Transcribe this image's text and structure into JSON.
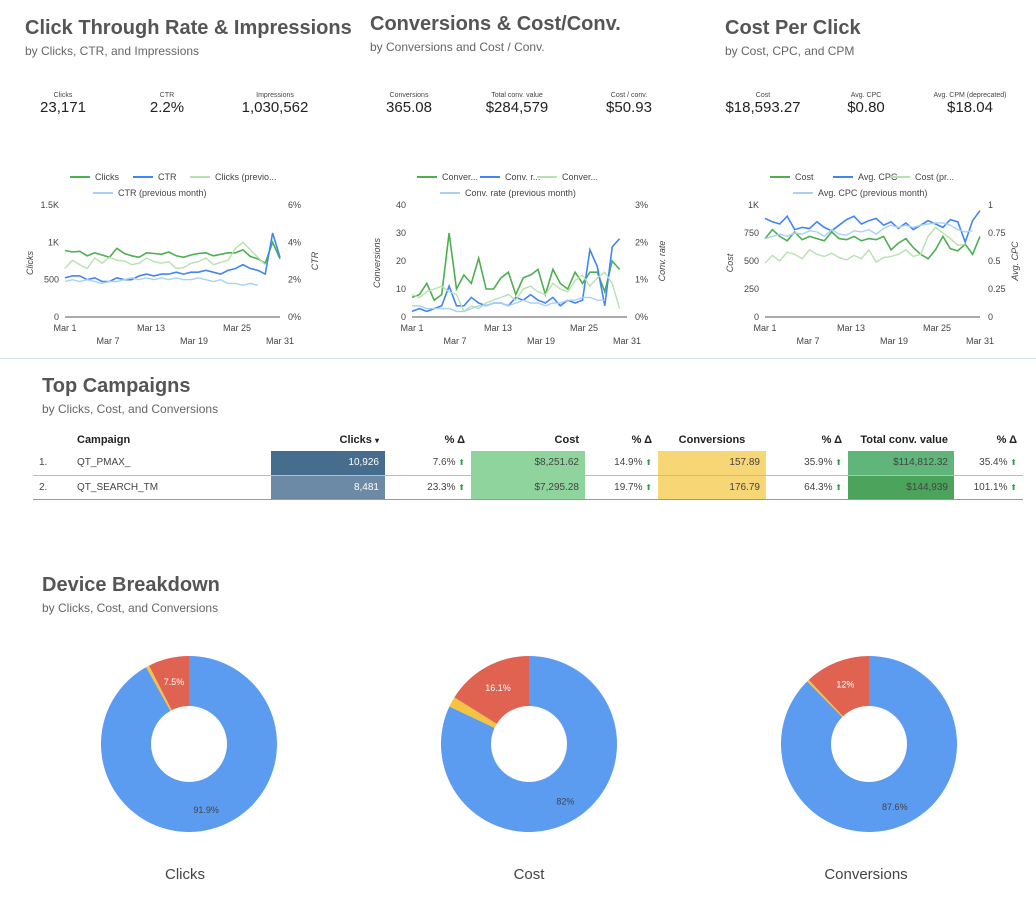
{
  "colors": {
    "green": "#4caf50",
    "blue": "#4285f4",
    "light_green": "#b7e1b1",
    "light_blue": "#a8d1f5",
    "donut_blue": "#5b9bf0",
    "donut_red": "#e06352",
    "donut_yellow": "#f5c243",
    "clicks_row1": "#4a6f8f",
    "clicks_row2": "#6c8aa6",
    "cost_cell": "#8fd49c",
    "conv_cell": "#f6d675",
    "value_row1": "#5fb57a",
    "value_row2": "#4ca35c"
  },
  "ctr_section": {
    "title": "Click Through Rate & Impressions",
    "subtitle": "by Clicks, CTR, and Impressions",
    "kpis": [
      {
        "label": "Clicks",
        "value": "23,171"
      },
      {
        "label": "CTR",
        "value": "2.2%"
      },
      {
        "label": "Impressions",
        "value": "1,030,562"
      }
    ]
  },
  "conv_section": {
    "title": "Conversions & Cost/Conv.",
    "subtitle": "by Conversions  and Cost / Conv.",
    "kpis": [
      {
        "label": "Conversions",
        "value": "365.08"
      },
      {
        "label": "Total conv. value",
        "value": "$284,579"
      },
      {
        "label": "Cost / conv.",
        "value": "$50.93"
      }
    ]
  },
  "cpc_section": {
    "title": "Cost Per Click",
    "subtitle": "by Cost, CPC, and CPM",
    "kpis": [
      {
        "label": "Cost",
        "value": "$18,593.27"
      },
      {
        "label": "Avg. CPC",
        "value": "$0.80"
      },
      {
        "label": "Avg. CPM (deprecated)",
        "value": "$18.04"
      }
    ]
  },
  "chart_data": [
    {
      "type": "line",
      "id": "ctr",
      "legend": [
        "Clicks",
        "CTR",
        "Clicks (previo...",
        "CTR (previous month)"
      ],
      "x_tick_labels": [
        "Mar 1",
        "Mar 7",
        "Mar 13",
        "Mar 19",
        "Mar 25",
        "Mar 31"
      ],
      "left_axis": {
        "label": "Clicks",
        "ticks": [
          "0",
          "500",
          "1K",
          "1.5K"
        ],
        "range": [
          0,
          1500
        ]
      },
      "right_axis": {
        "label": "CTR",
        "ticks": [
          "0%",
          "2%",
          "4%",
          "6%"
        ],
        "range": [
          0,
          6
        ]
      },
      "series": [
        {
          "name": "Clicks",
          "axis": "left",
          "values": [
            890,
            870,
            880,
            820,
            860,
            830,
            800,
            920,
            850,
            820,
            800,
            860,
            850,
            840,
            870,
            820,
            800,
            830,
            850,
            860,
            820,
            840,
            860,
            860,
            900,
            810,
            780,
            720,
            1000,
            780
          ]
        },
        {
          "name": "CTR",
          "axis": "right",
          "values": [
            2.1,
            2.2,
            2.2,
            2.0,
            2.1,
            1.9,
            1.9,
            2.1,
            2.0,
            2.0,
            2.2,
            2.3,
            2.2,
            2.3,
            2.3,
            2.4,
            2.3,
            2.4,
            2.4,
            2.5,
            2.4,
            2.3,
            2.5,
            2.6,
            2.8,
            2.6,
            2.5,
            2.3,
            4.5,
            3.2
          ]
        },
        {
          "name": "Clicks (previous month)",
          "axis": "left",
          "values": [
            650,
            760,
            700,
            650,
            790,
            720,
            800,
            760,
            750,
            700,
            720,
            790,
            740,
            720,
            740,
            650,
            660,
            720,
            740,
            790,
            700,
            730,
            760,
            920,
            1000,
            900,
            800,
            700
          ]
        },
        {
          "name": "CTR (previous month)",
          "axis": "right",
          "values": [
            1.9,
            2.0,
            1.9,
            2.0,
            1.9,
            1.8,
            1.9,
            1.9,
            2.0,
            2.1,
            2.0,
            2.1,
            2.0,
            2.1,
            2.0,
            2.1,
            2.0,
            2.0,
            2.1,
            2.0,
            1.9,
            2.0,
            1.8,
            1.8,
            1.7,
            1.8,
            1.7
          ]
        }
      ]
    },
    {
      "type": "line",
      "id": "conv",
      "legend": [
        "Conver...",
        "Conv. r...",
        "Conver...",
        "Conv. rate (previous month)"
      ],
      "x_tick_labels": [
        "Mar 1",
        "Mar 7",
        "Mar 13",
        "Mar 19",
        "Mar 25",
        "Mar 31"
      ],
      "left_axis": {
        "label": "Conversions",
        "ticks": [
          "0",
          "10",
          "20",
          "30",
          "40"
        ],
        "range": [
          0,
          40
        ]
      },
      "right_axis": {
        "label": "Conv. rate",
        "ticks": [
          "0%",
          "1%",
          "2%",
          "3%"
        ],
        "range": [
          0,
          3
        ]
      },
      "series": [
        {
          "name": "Conversions",
          "axis": "left",
          "values": [
            7,
            8,
            12,
            6,
            8,
            30,
            10,
            15,
            12,
            21,
            10,
            10,
            14,
            16,
            8,
            14,
            15,
            17,
            8,
            17,
            12,
            10,
            16,
            12,
            16,
            16,
            9,
            20,
            17
          ]
        },
        {
          "name": "Conv. rate",
          "axis": "left",
          "values": [
            2,
            3,
            2,
            3,
            4,
            11,
            4,
            4,
            7,
            5,
            4,
            5,
            5,
            4,
            7,
            6,
            8,
            6,
            5,
            7,
            4,
            6,
            5,
            6,
            24,
            18,
            4,
            25,
            28
          ]
        },
        {
          "name": "Conversions (previous month)",
          "axis": "left",
          "values": [
            8,
            7,
            9,
            10,
            11,
            9,
            8,
            2,
            4,
            3,
            5,
            6,
            7,
            8,
            6,
            10,
            11,
            9,
            8,
            12,
            10,
            9,
            13,
            15,
            11,
            14,
            16,
            12,
            3
          ]
        },
        {
          "name": "Conv. rate (previous month)",
          "axis": "left",
          "values": [
            4,
            4,
            3,
            3,
            3,
            3,
            2,
            2,
            3,
            4,
            4,
            5,
            5,
            4,
            5,
            6,
            5,
            5,
            4,
            5,
            5,
            6,
            6,
            7,
            7,
            6,
            6
          ]
        }
      ]
    },
    {
      "type": "line",
      "id": "cpc",
      "legend": [
        "Cost",
        "Avg. CPC",
        "Cost (pr...",
        "Avg. CPC (previous month)"
      ],
      "x_tick_labels": [
        "Mar 1",
        "Mar 7",
        "Mar 13",
        "Mar 19",
        "Mar 25",
        "Mar 31"
      ],
      "left_axis": {
        "label": "Cost",
        "ticks": [
          "0",
          "250",
          "500",
          "750",
          "1K"
        ],
        "range": [
          0,
          1000
        ]
      },
      "right_axis": {
        "label": "Avg. CPC",
        "ticks": [
          "0",
          "0.25",
          "0.5",
          "0.75",
          "1"
        ],
        "range": [
          0,
          1
        ]
      },
      "series": [
        {
          "name": "Cost",
          "axis": "left",
          "values": [
            700,
            780,
            720,
            680,
            760,
            690,
            720,
            700,
            680,
            760,
            700,
            690,
            720,
            680,
            700,
            690,
            720,
            600,
            660,
            700,
            620,
            560,
            520,
            600,
            720,
            610,
            590,
            650,
            560,
            720
          ]
        },
        {
          "name": "Avg. CPC",
          "axis": "right",
          "values": [
            0.88,
            0.85,
            0.83,
            0.9,
            0.78,
            0.8,
            0.79,
            0.85,
            0.8,
            0.77,
            0.82,
            0.87,
            0.9,
            0.83,
            0.86,
            0.88,
            0.82,
            0.85,
            0.79,
            0.84,
            0.78,
            0.82,
            0.86,
            0.83,
            0.8,
            0.87,
            0.85,
            0.67,
            0.86,
            0.95
          ]
        },
        {
          "name": "Cost (previous month)",
          "axis": "left",
          "values": [
            480,
            550,
            500,
            580,
            560,
            520,
            600,
            560,
            540,
            570,
            530,
            510,
            550,
            520,
            600,
            490,
            530,
            540,
            560,
            600,
            540,
            560,
            720,
            800,
            750,
            700,
            640,
            650
          ]
        },
        {
          "name": "Avg. CPC (previous month)",
          "axis": "right",
          "values": [
            0.7,
            0.72,
            0.74,
            0.72,
            0.75,
            0.74,
            0.77,
            0.76,
            0.72,
            0.78,
            0.74,
            0.73,
            0.77,
            0.76,
            0.78,
            0.74,
            0.79,
            0.82,
            0.8,
            0.82,
            0.8,
            0.82,
            0.83,
            0.84,
            0.84,
            0.82,
            0.78,
            0.76,
            0.77
          ]
        }
      ]
    },
    {
      "type": "pie",
      "id": "donut-clicks",
      "label": "Clicks",
      "slices": [
        {
          "name": "slice-1",
          "value": 91.9,
          "color_key": "donut_blue",
          "text": "91.9%"
        },
        {
          "name": "slice-2",
          "value": 0.6,
          "color_key": "donut_yellow",
          "text": ""
        },
        {
          "name": "slice-3",
          "value": 7.5,
          "color_key": "donut_red",
          "text": "7.5%"
        }
      ]
    },
    {
      "type": "pie",
      "id": "donut-cost",
      "label": "Cost",
      "slices": [
        {
          "name": "slice-1",
          "value": 82,
          "color_key": "donut_blue",
          "text": "82%"
        },
        {
          "name": "slice-2",
          "value": 1.9,
          "color_key": "donut_yellow",
          "text": ""
        },
        {
          "name": "slice-3",
          "value": 16.1,
          "color_key": "donut_red",
          "text": "16.1%"
        }
      ]
    },
    {
      "type": "pie",
      "id": "donut-conversions",
      "label": "Conversions",
      "slices": [
        {
          "name": "slice-1",
          "value": 87.6,
          "color_key": "donut_blue",
          "text": "87.6%"
        },
        {
          "name": "slice-2",
          "value": 0.4,
          "color_key": "donut_yellow",
          "text": ""
        },
        {
          "name": "slice-3",
          "value": 12,
          "color_key": "donut_red",
          "text": "12%"
        }
      ]
    }
  ],
  "campaigns": {
    "title": "Top Campaigns",
    "subtitle": "by Clicks, Cost, and Conversions",
    "headers": {
      "campaign": "Campaign",
      "clicks": "Clicks",
      "sort_indicator": "▾",
      "delta": "% Δ",
      "cost": "Cost",
      "conversions": "Conversions",
      "value": "Total conv. value"
    },
    "rows": [
      {
        "index": "1.",
        "campaign": "QT_PMAX_",
        "clicks": "10,926",
        "clicks_delta": "7.6%",
        "cost": "$8,251.62",
        "cost_delta": "14.9%",
        "conversions": "157.89",
        "conversions_delta": "35.9%",
        "value": "$114,812.32",
        "value_delta": "35.4%"
      },
      {
        "index": "2.",
        "campaign": "QT_SEARCH_TM",
        "clicks": "8,481",
        "clicks_delta": "23.3%",
        "cost": "$7,295.28",
        "cost_delta": "19.7%",
        "conversions": "176.79",
        "conversions_delta": "64.3%",
        "value": "$144,939",
        "value_delta": "101.1%"
      }
    ],
    "up_arrow": "⬆"
  },
  "devices": {
    "title": "Device Breakdown",
    "subtitle": "by Clicks, Cost, and Conversions"
  }
}
